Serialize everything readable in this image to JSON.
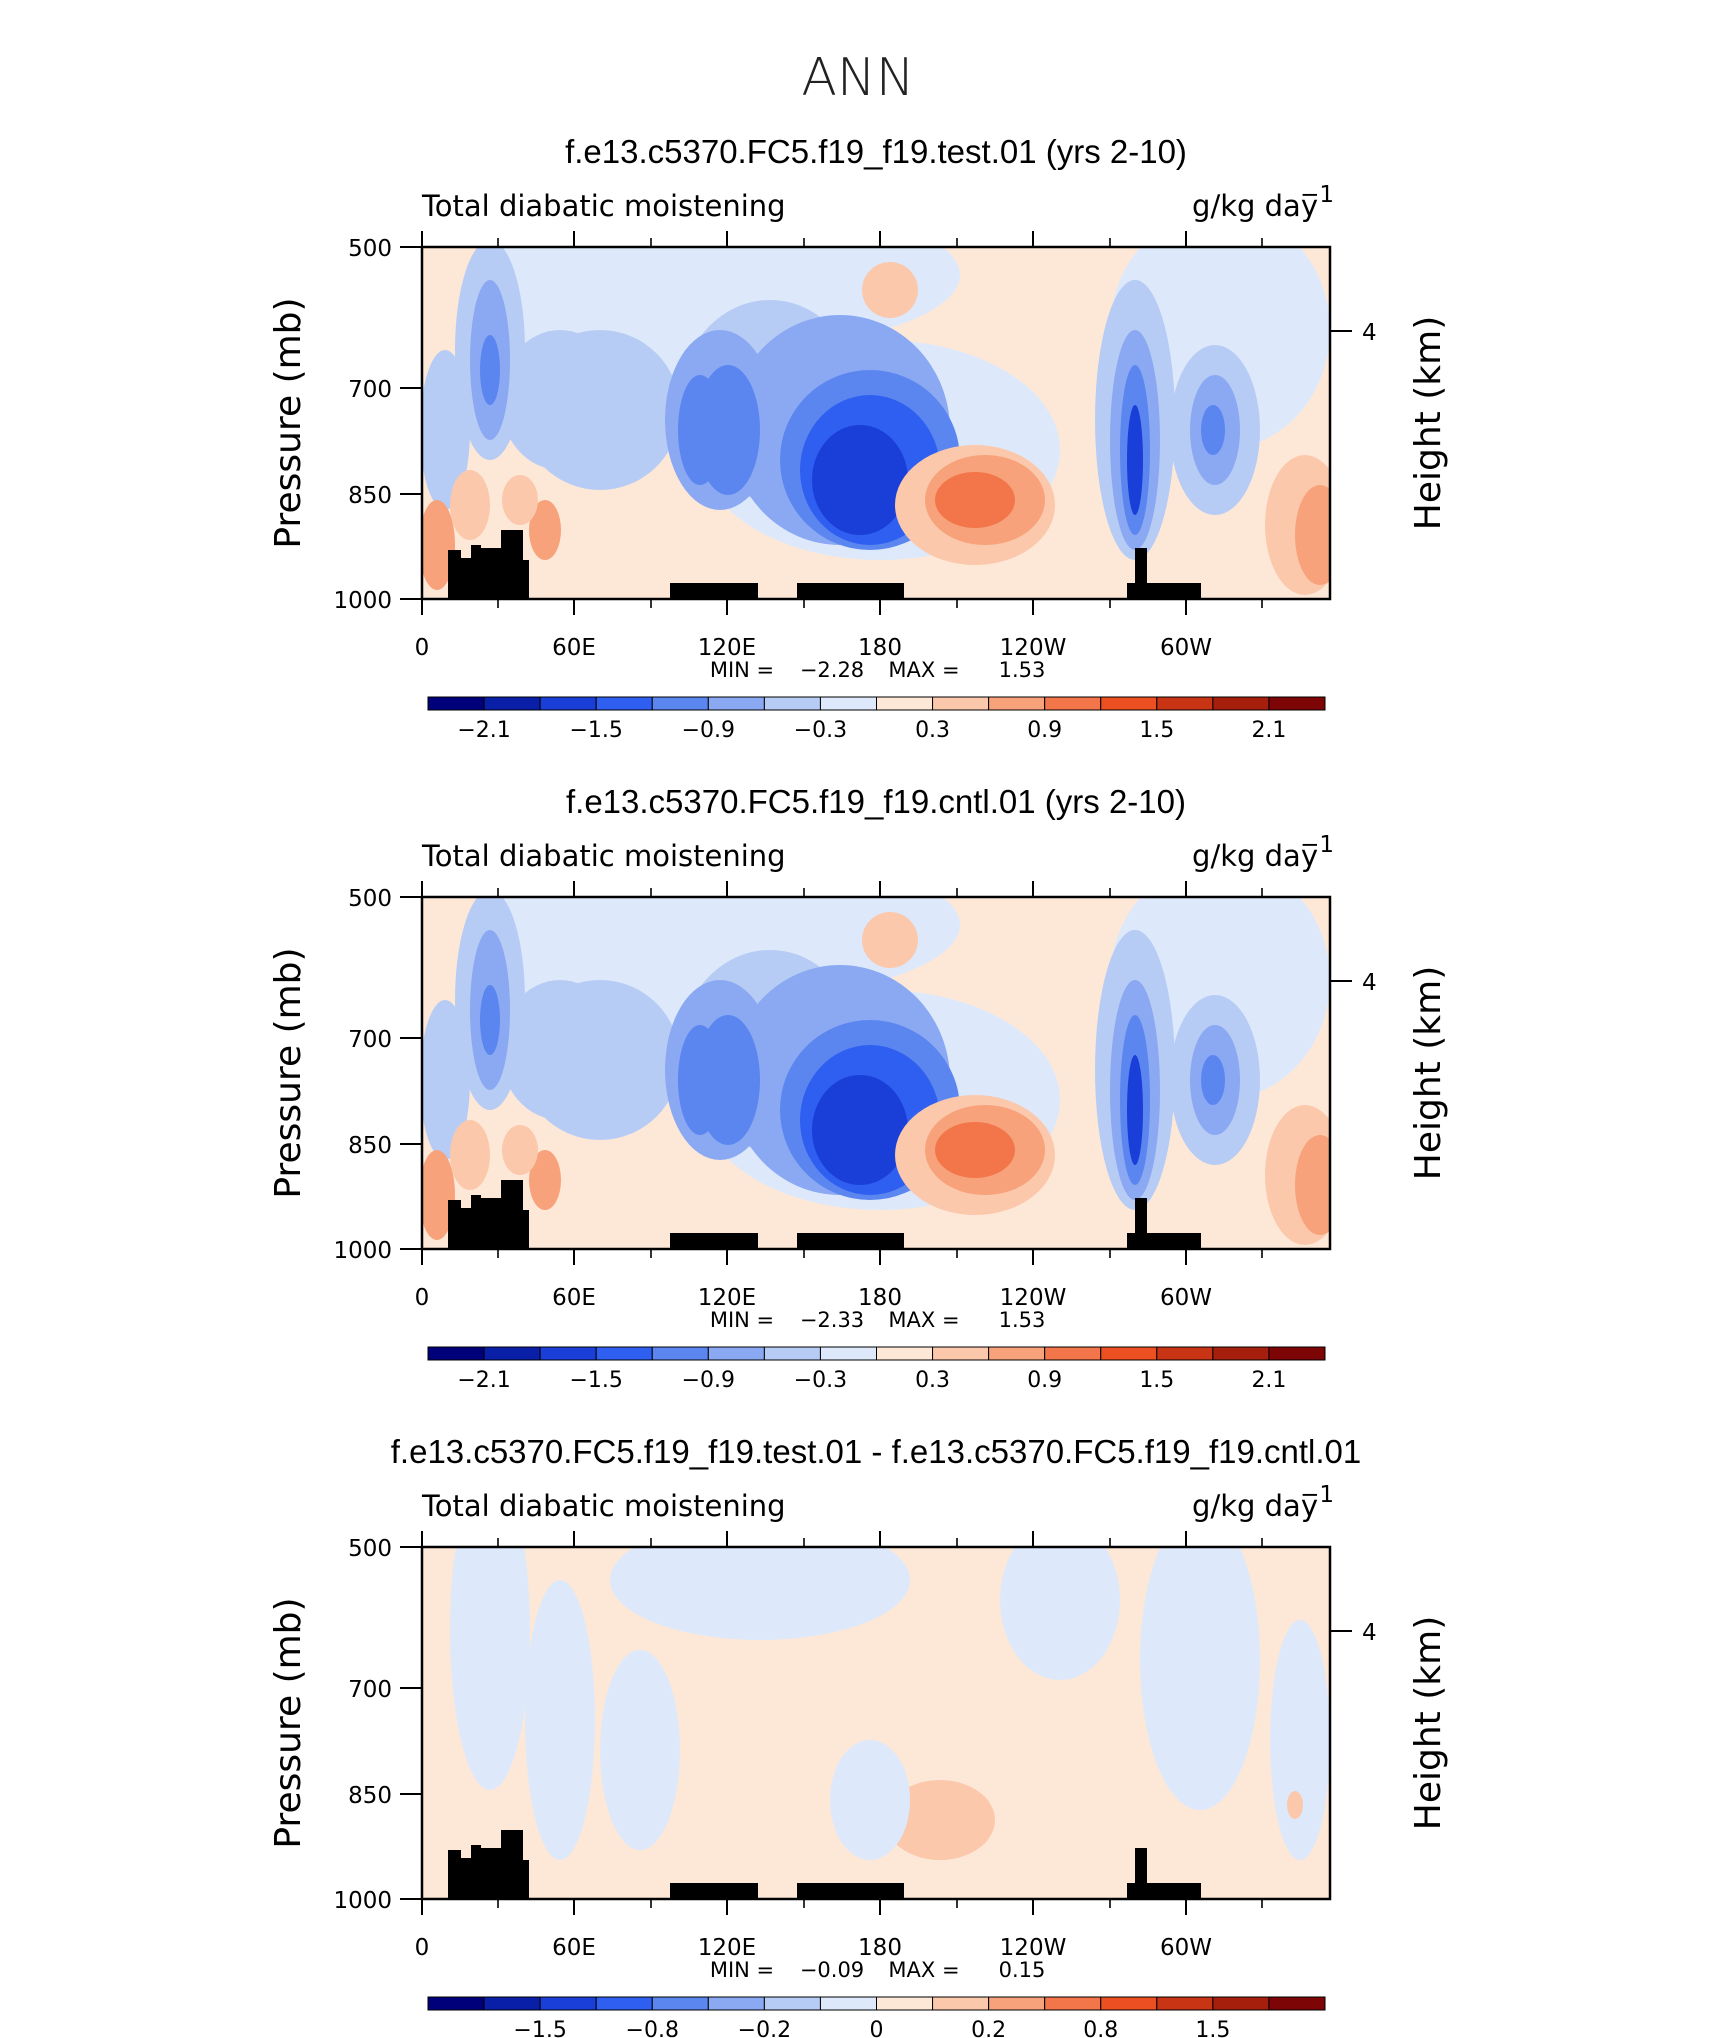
{
  "chart_data": {
    "main_title": "ANN",
    "panels": [
      {
        "type": "heatmap",
        "title": "f.e13.c5370.FC5.f19_f19.test.01 (yrs 2-10)",
        "variable": "Total diabatic moistening",
        "units": "g/kg day",
        "units_exp": "−1",
        "ylabel": "Pressure (mb)",
        "ylabel_right": "Height (km)",
        "y_ticks": [
          "500",
          "700",
          "850",
          "1000"
        ],
        "right_ticks": [
          "4"
        ],
        "x_ticks": [
          "0",
          "60E",
          "120E",
          "180",
          "120W",
          "60W"
        ],
        "stats": {
          "min_label": "MIN =",
          "min": "−2.28",
          "max_label": "MAX =",
          "max": "1.53"
        },
        "colorbar_labels": [
          "−2.1",
          "−1.5",
          "−0.9",
          "−0.3",
          "0.3",
          "0.9",
          "1.5",
          "2.1"
        ]
      },
      {
        "type": "heatmap",
        "title": "f.e13.c5370.FC5.f19_f19.cntl.01 (yrs 2-10)",
        "variable": "Total diabatic moistening",
        "units": "g/kg day",
        "units_exp": "−1",
        "ylabel": "Pressure (mb)",
        "ylabel_right": "Height (km)",
        "y_ticks": [
          "500",
          "700",
          "850",
          "1000"
        ],
        "right_ticks": [
          "4"
        ],
        "x_ticks": [
          "0",
          "60E",
          "120E",
          "180",
          "120W",
          "60W"
        ],
        "stats": {
          "min_label": "MIN =",
          "min": "−2.33",
          "max_label": "MAX =",
          "max": "1.53"
        },
        "colorbar_labels": [
          "−2.1",
          "−1.5",
          "−0.9",
          "−0.3",
          "0.3",
          "0.9",
          "1.5",
          "2.1"
        ]
      },
      {
        "type": "heatmap",
        "title": "f.e13.c5370.FC5.f19_f19.test.01 - f.e13.c5370.FC5.f19_f19.cntl.01",
        "variable": "Total diabatic moistening",
        "units": "g/kg day",
        "units_exp": "−1",
        "ylabel": "Pressure (mb)",
        "ylabel_right": "Height (km)",
        "y_ticks": [
          "500",
          "700",
          "850",
          "1000"
        ],
        "right_ticks": [
          "4"
        ],
        "x_ticks": [
          "0",
          "60E",
          "120E",
          "180",
          "120W",
          "60W"
        ],
        "stats": {
          "min_label": "MIN =",
          "min": "−0.09",
          "max_label": "MAX =",
          "max": "0.15"
        },
        "colorbar_labels": [
          "−1.5",
          "−0.8",
          "−0.2",
          "0",
          "0.2",
          "0.8",
          "1.5"
        ]
      }
    ],
    "colormap": [
      "#00007a",
      "#0a1fa8",
      "#1a3fd8",
      "#2f5ff0",
      "#5b86f0",
      "#8aa9f2",
      "#b7ccf5",
      "#dde9fb",
      "#fde8d8",
      "#fbc8ac",
      "#f7a27a",
      "#f2764a",
      "#ec4f22",
      "#c83414",
      "#a51f0c",
      "#7e0505"
    ]
  }
}
